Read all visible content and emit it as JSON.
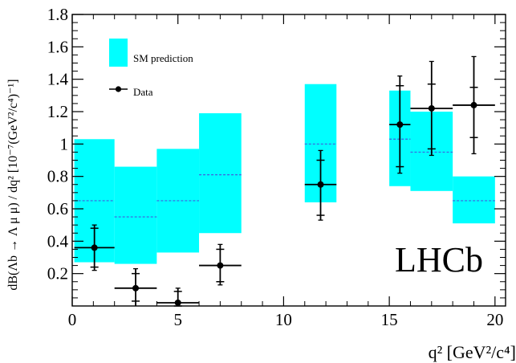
{
  "chart_data": {
    "type": "scatter",
    "title": "",
    "xlabel": "q² [GeV²/c⁴]",
    "ylabel": "dB(Λb → Λ μ μ) / dq² [10⁻⁷(GeV²/c⁴)⁻¹]",
    "xlim": [
      0,
      20.5
    ],
    "ylim": [
      0,
      1.8
    ],
    "x_ticks": [
      0,
      5,
      10,
      15,
      20
    ],
    "y_ticks": [
      0.2,
      0.4,
      0.6,
      0.8,
      1,
      1.2,
      1.4,
      1.6,
      1.8
    ],
    "grid": false,
    "legend_position": "top-left",
    "brand_label": "LHCb",
    "series": [
      {
        "name": "SM prediction",
        "kind": "band",
        "color": "#00ffff",
        "line_color": "#3f5fdf",
        "bins": [
          {
            "x_low": 0.1,
            "x_high": 2.0,
            "central": 0.65,
            "low": 0.27,
            "high": 1.03
          },
          {
            "x_low": 2.0,
            "x_high": 4.0,
            "central": 0.55,
            "low": 0.26,
            "high": 0.86
          },
          {
            "x_low": 4.0,
            "x_high": 6.0,
            "central": 0.65,
            "low": 0.33,
            "high": 0.97
          },
          {
            "x_low": 6.0,
            "x_high": 8.0,
            "central": 0.81,
            "low": 0.45,
            "high": 1.19
          },
          {
            "x_low": 11.0,
            "x_high": 12.5,
            "central": 1.0,
            "low": 0.64,
            "high": 1.37
          },
          {
            "x_low": 15.0,
            "x_high": 16.0,
            "central": 1.03,
            "low": 0.74,
            "high": 1.33
          },
          {
            "x_low": 16.0,
            "x_high": 18.0,
            "central": 0.95,
            "low": 0.71,
            "high": 1.2
          },
          {
            "x_low": 18.0,
            "x_high": 20.0,
            "central": 0.65,
            "low": 0.51,
            "high": 0.8
          }
        ]
      },
      {
        "name": "Data",
        "kind": "points",
        "color": "#000000",
        "points": [
          {
            "x": 1.05,
            "x_err": 0.95,
            "y": 0.36,
            "stat_low": 0.24,
            "stat_high": 0.48,
            "tot_low": 0.22,
            "tot_high": 0.5
          },
          {
            "x": 3.0,
            "x_err": 1.0,
            "y": 0.11,
            "stat_low": 0.03,
            "stat_high": 0.2,
            "tot_low": 0.0,
            "tot_high": 0.23
          },
          {
            "x": 5.0,
            "x_err": 1.0,
            "y": 0.02,
            "stat_low": 0.0,
            "stat_high": 0.09,
            "tot_low": 0.0,
            "tot_high": 0.11
          },
          {
            "x": 7.0,
            "x_err": 1.0,
            "y": 0.25,
            "stat_low": 0.15,
            "stat_high": 0.35,
            "tot_low": 0.13,
            "tot_high": 0.38
          },
          {
            "x": 11.75,
            "x_err": 0.75,
            "y": 0.75,
            "stat_low": 0.56,
            "stat_high": 0.9,
            "tot_low": 0.53,
            "tot_high": 0.96
          },
          {
            "x": 15.5,
            "x_err": 0.5,
            "y": 1.12,
            "stat_low": 0.86,
            "stat_high": 1.36,
            "tot_low": 0.82,
            "tot_high": 1.42
          },
          {
            "x": 17.0,
            "x_err": 1.0,
            "y": 1.22,
            "stat_low": 0.97,
            "stat_high": 1.37,
            "tot_low": 0.93,
            "tot_high": 1.51
          },
          {
            "x": 19.0,
            "x_err": 1.0,
            "y": 1.24,
            "stat_low": 1.04,
            "stat_high": 1.35,
            "tot_low": 0.94,
            "tot_high": 1.54
          }
        ]
      }
    ]
  }
}
